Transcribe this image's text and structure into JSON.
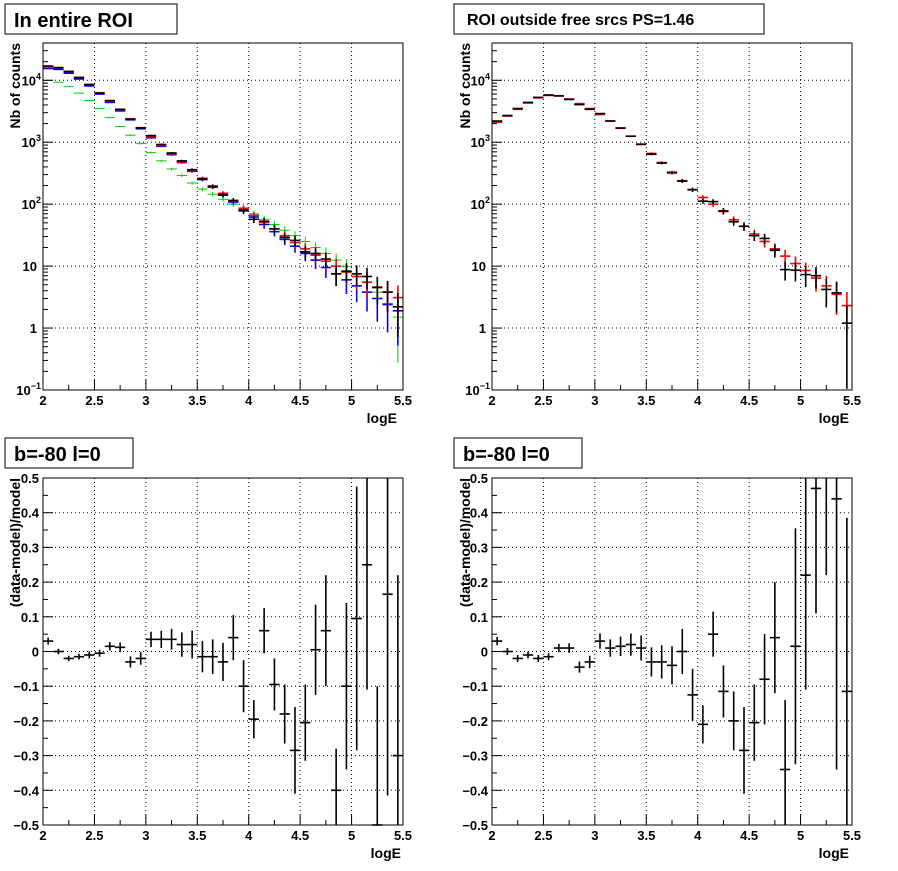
{
  "colors": {
    "data": "#000000",
    "model": "#ff0000",
    "blue": "#0000ff",
    "green": "#00cc00",
    "grid": "#000000",
    "frame": "#000000",
    "title_box_bg": "#ffffff"
  },
  "chart_data": [
    {
      "type": "scatter",
      "panel": "top-left",
      "title": "In entire ROI",
      "xlabel": "logE",
      "ylabel": "Nb of counts",
      "xlim": [
        2,
        5.5
      ],
      "ylim": [
        0.1,
        40000
      ],
      "yscale": "log",
      "grid": true,
      "xticks": [
        "2",
        "2.5",
        "3",
        "3.5",
        "4",
        "4.5",
        "5",
        "5.5"
      ],
      "yticks": [
        {
          "value": 0.1,
          "base": "10",
          "exp": "−1"
        },
        {
          "value": 1,
          "base": "1",
          "exp": ""
        },
        {
          "value": 10,
          "base": "10",
          "exp": ""
        },
        {
          "value": 100,
          "base": "10",
          "exp": "2"
        },
        {
          "value": 1000,
          "base": "10",
          "exp": "3"
        },
        {
          "value": 10000,
          "base": "10",
          "exp": "4"
        }
      ],
      "bin_width": 0.1,
      "x": [
        2.05,
        2.15,
        2.25,
        2.35,
        2.45,
        2.55,
        2.65,
        2.75,
        2.85,
        2.95,
        3.05,
        3.15,
        3.25,
        3.35,
        3.45,
        3.55,
        3.65,
        3.75,
        3.85,
        3.95,
        4.05,
        4.15,
        4.25,
        4.35,
        4.45,
        4.55,
        4.65,
        4.75,
        4.85,
        4.95,
        5.05,
        5.15,
        5.25,
        5.35,
        5.45
      ],
      "series": [
        {
          "color_key": "green",
          "errors": true,
          "values": [
            10000,
            9300,
            7900,
            6200,
            4700,
            3500,
            2500,
            1800,
            1300,
            950,
            680,
            500,
            370,
            290,
            220,
            175,
            145,
            120,
            100,
            85,
            70,
            57,
            47,
            38,
            31,
            25,
            20,
            16,
            12.5,
            9.8,
            7.5,
            5.5,
            3.8,
            2.5,
            1.5
          ]
        },
        {
          "color_key": "blue",
          "errors": true,
          "values": [
            15500,
            15000,
            13000,
            10500,
            8100,
            6000,
            4400,
            3200,
            2300,
            1650,
            1180,
            860,
            630,
            470,
            340,
            250,
            190,
            145,
            108,
            82,
            62,
            47,
            36,
            27,
            21,
            16,
            12.5,
            9.5,
            7.5,
            6,
            4.8,
            3.8,
            3,
            2.4,
            1.9
          ]
        },
        {
          "color_key": "model",
          "errors": true,
          "values": [
            16500,
            16000,
            14000,
            11200,
            8600,
            6300,
            4600,
            3350,
            2400,
            1720,
            1230,
            890,
            650,
            480,
            350,
            262,
            198,
            150,
            112,
            86,
            66,
            51,
            40,
            31,
            24,
            19,
            15,
            12,
            10,
            8,
            6.8,
            5.5,
            4.6,
            3.8,
            3.1
          ]
        },
        {
          "color_key": "data",
          "errors": true,
          "values": [
            17000,
            16000,
            13800,
            11000,
            8500,
            6200,
            4700,
            3400,
            2350,
            1700,
            1280,
            920,
            670,
            500,
            360,
            255,
            190,
            140,
            115,
            78,
            57,
            53,
            40,
            29,
            26,
            17,
            16,
            13,
            7.5,
            8.3,
            7.5,
            6.8,
            4.5,
            3.8,
            2.2
          ]
        }
      ]
    },
    {
      "type": "scatter",
      "panel": "top-right",
      "title": "ROI outside free srcs PS=1.46",
      "xlabel": "logE",
      "ylabel": "Nb of counts",
      "xlim": [
        2,
        5.5
      ],
      "ylim": [
        0.1,
        40000
      ],
      "yscale": "log",
      "grid": true,
      "xticks": [
        "2",
        "2.5",
        "3",
        "3.5",
        "4",
        "4.5",
        "5",
        "5.5"
      ],
      "yticks": [
        {
          "value": 0.1,
          "base": "10",
          "exp": "−1"
        },
        {
          "value": 1,
          "base": "1",
          "exp": ""
        },
        {
          "value": 10,
          "base": "10",
          "exp": ""
        },
        {
          "value": 100,
          "base": "10",
          "exp": "2"
        },
        {
          "value": 1000,
          "base": "10",
          "exp": "3"
        },
        {
          "value": 10000,
          "base": "10",
          "exp": "4"
        }
      ],
      "bin_width": 0.1,
      "x": [
        2.05,
        2.15,
        2.25,
        2.35,
        2.45,
        2.55,
        2.65,
        2.75,
        2.85,
        2.95,
        3.05,
        3.15,
        3.25,
        3.35,
        3.45,
        3.55,
        3.65,
        3.75,
        3.85,
        3.95,
        4.05,
        4.15,
        4.25,
        4.35,
        4.45,
        4.55,
        4.65,
        4.75,
        4.85,
        4.95,
        5.05,
        5.15,
        5.25,
        5.35,
        5.45
      ],
      "series": [
        {
          "color_key": "model",
          "errors": true,
          "values": [
            2100,
            2650,
            3400,
            4300,
            5200,
            5700,
            5600,
            5000,
            4200,
            3500,
            2800,
            2200,
            1680,
            1250,
            920,
            660,
            470,
            330,
            240,
            170,
            128,
            100,
            76,
            56,
            44,
            33,
            25,
            19,
            14.5,
            11,
            8.5,
            6.4,
            4.8,
            3.5,
            2.3
          ]
        },
        {
          "color_key": "data",
          "errors": true,
          "values": [
            2200,
            2700,
            3500,
            4400,
            5300,
            5800,
            5600,
            4900,
            4050,
            3400,
            2900,
            2200,
            1700,
            1250,
            930,
            640,
            460,
            320,
            235,
            172,
            112,
            110,
            78,
            52,
            44,
            31,
            28,
            18,
            8.8,
            8.6,
            7.3,
            7,
            4.2,
            3.7,
            1.2
          ]
        }
      ]
    },
    {
      "type": "scatter",
      "panel": "bottom-left",
      "title": "b=-80 l=0",
      "xlabel": "logE",
      "ylabel": "(data-model)/model",
      "xlim": [
        2,
        5.5
      ],
      "ylim": [
        -0.5,
        0.5
      ],
      "grid": true,
      "xticks": [
        "2",
        "2.5",
        "3",
        "3.5",
        "4",
        "4.5",
        "5",
        "5.5"
      ],
      "yticks": [
        "−0.5",
        "−0.4",
        "−0.3",
        "−0.2",
        "−0.1",
        "0",
        "0.1",
        "0.2",
        "0.3",
        "0.4",
        "0.5"
      ],
      "bin_width": 0.1,
      "x": [
        2.05,
        2.15,
        2.25,
        2.35,
        2.45,
        2.55,
        2.65,
        2.75,
        2.85,
        2.95,
        3.05,
        3.15,
        3.25,
        3.35,
        3.45,
        3.55,
        3.65,
        3.75,
        3.85,
        3.95,
        4.05,
        4.15,
        4.25,
        4.35,
        4.45,
        4.55,
        4.65,
        4.75,
        4.85,
        4.95,
        5.05,
        5.15,
        5.25,
        5.35,
        5.45
      ],
      "values": [
        0.03,
        0.0,
        -0.02,
        -0.015,
        -0.01,
        -0.005,
        0.015,
        0.012,
        -0.03,
        -0.02,
        0.035,
        0.035,
        0.035,
        0.02,
        0.02,
        -0.015,
        -0.015,
        -0.03,
        0.04,
        -0.1,
        -0.195,
        0.06,
        -0.095,
        -0.18,
        -0.285,
        -0.205,
        0.005,
        0.06,
        -0.4,
        -0.1,
        0.095,
        0.25,
        -0.5,
        0.165,
        -0.3
      ],
      "errors": [
        0.01,
        0.008,
        0.008,
        0.008,
        0.01,
        0.01,
        0.012,
        0.014,
        0.016,
        0.018,
        0.022,
        0.025,
        0.03,
        0.035,
        0.04,
        0.045,
        0.05,
        0.055,
        0.065,
        0.075,
        0.055,
        0.065,
        0.075,
        0.085,
        0.125,
        0.11,
        0.13,
        0.16,
        0.12,
        0.24,
        0.38,
        0.36,
        0.4,
        0.58,
        0.52
      ]
    },
    {
      "type": "scatter",
      "panel": "bottom-right",
      "title": "b=-80 l=0",
      "xlabel": "logE",
      "ylabel": "(data-model)/model",
      "xlim": [
        2,
        5.5
      ],
      "ylim": [
        -0.5,
        0.5
      ],
      "grid": true,
      "xticks": [
        "2",
        "2.5",
        "3",
        "3.5",
        "4",
        "4.5",
        "5",
        "5.5"
      ],
      "yticks": [
        "−0.5",
        "−0.4",
        "−0.3",
        "−0.2",
        "−0.1",
        "0",
        "0.1",
        "0.2",
        "0.3",
        "0.4",
        "0.5"
      ],
      "bin_width": 0.1,
      "x": [
        2.05,
        2.15,
        2.25,
        2.35,
        2.45,
        2.55,
        2.65,
        2.75,
        2.85,
        2.95,
        3.05,
        3.15,
        3.25,
        3.35,
        3.45,
        3.55,
        3.65,
        3.75,
        3.85,
        3.95,
        4.05,
        4.15,
        4.25,
        4.35,
        4.45,
        4.55,
        4.65,
        4.75,
        4.85,
        4.95,
        5.05,
        5.15,
        5.25,
        5.35,
        5.45
      ],
      "values": [
        0.03,
        0.0,
        -0.02,
        -0.01,
        -0.02,
        -0.015,
        0.01,
        0.01,
        -0.045,
        -0.03,
        0.03,
        0.01,
        0.015,
        0.02,
        0.01,
        -0.03,
        -0.03,
        -0.04,
        0.0,
        -0.125,
        -0.21,
        0.05,
        -0.115,
        -0.2,
        -0.285,
        -0.205,
        -0.08,
        0.04,
        -0.34,
        0.015,
        0.22,
        0.47,
        0.62,
        0.44,
        -0.115
      ],
      "errors": [
        0.012,
        0.01,
        0.01,
        0.01,
        0.01,
        0.01,
        0.012,
        0.014,
        0.016,
        0.018,
        0.022,
        0.025,
        0.028,
        0.032,
        0.036,
        0.042,
        0.048,
        0.055,
        0.065,
        0.075,
        0.055,
        0.065,
        0.075,
        0.085,
        0.125,
        0.11,
        0.13,
        0.16,
        0.2,
        0.34,
        0.33,
        0.36,
        0.4,
        0.78,
        0.5
      ]
    }
  ]
}
